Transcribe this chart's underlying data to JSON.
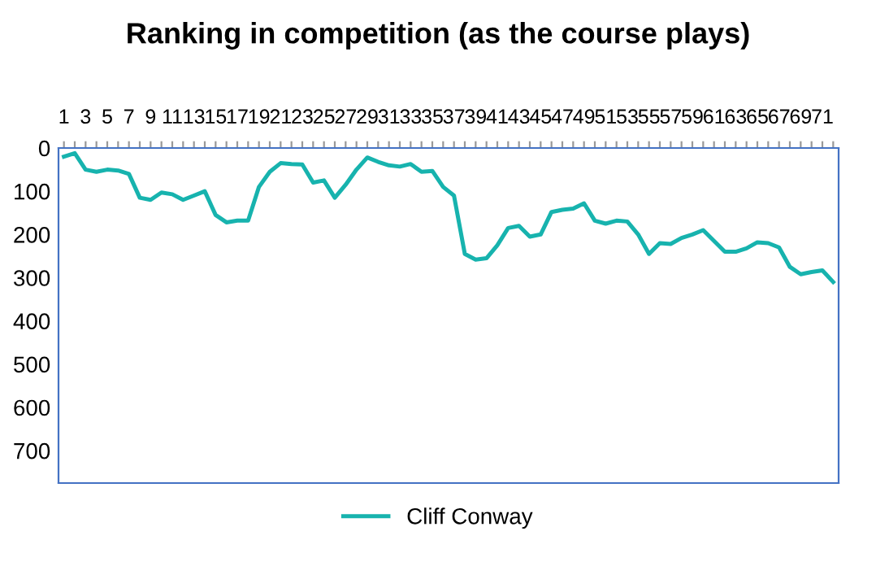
{
  "chart_data": {
    "type": "line",
    "title": "Ranking in competition (as the course plays)",
    "categories": [
      "1",
      null,
      "3",
      null,
      "5",
      null,
      "7",
      null,
      "9",
      null,
      "11",
      null,
      "13",
      null,
      "15",
      null,
      "17",
      null,
      "19",
      null,
      "21",
      null,
      "23",
      null,
      "25",
      null,
      "27",
      null,
      "29",
      null,
      "31",
      null,
      "33",
      null,
      "35",
      null,
      "37",
      null,
      "39",
      null,
      "41",
      null,
      "43",
      null,
      "45",
      null,
      "47",
      null,
      "49",
      null,
      "51",
      null,
      "53",
      null,
      "55",
      null,
      "57",
      null,
      "59",
      null,
      "61",
      null,
      "63",
      null,
      "65",
      null,
      "67",
      null,
      "69",
      null,
      "71",
      null
    ],
    "series": [
      {
        "name": "Cliff Conway",
        "color": "#17b3ae",
        "values": [
          20,
          12,
          50,
          55,
          50,
          52,
          60,
          115,
          120,
          103,
          107,
          120,
          110,
          100,
          155,
          172,
          168,
          168,
          90,
          55,
          35,
          37,
          38,
          80,
          75,
          115,
          85,
          50,
          22,
          32,
          40,
          43,
          37,
          55,
          53,
          90,
          110,
          245,
          258,
          255,
          225,
          185,
          180,
          205,
          200,
          148,
          143,
          140,
          128,
          168,
          175,
          168,
          170,
          200,
          245,
          220,
          222,
          208,
          200,
          190,
          215,
          240,
          240,
          232,
          218,
          220,
          230,
          275,
          292,
          287,
          283,
          310
        ]
      }
    ],
    "ylim": [
      775,
      0
    ],
    "yticks": [
      0,
      100,
      200,
      300,
      400,
      500,
      600,
      700
    ],
    "grid": false,
    "legend": "bottom",
    "marker": "none",
    "line_style": "solid"
  }
}
